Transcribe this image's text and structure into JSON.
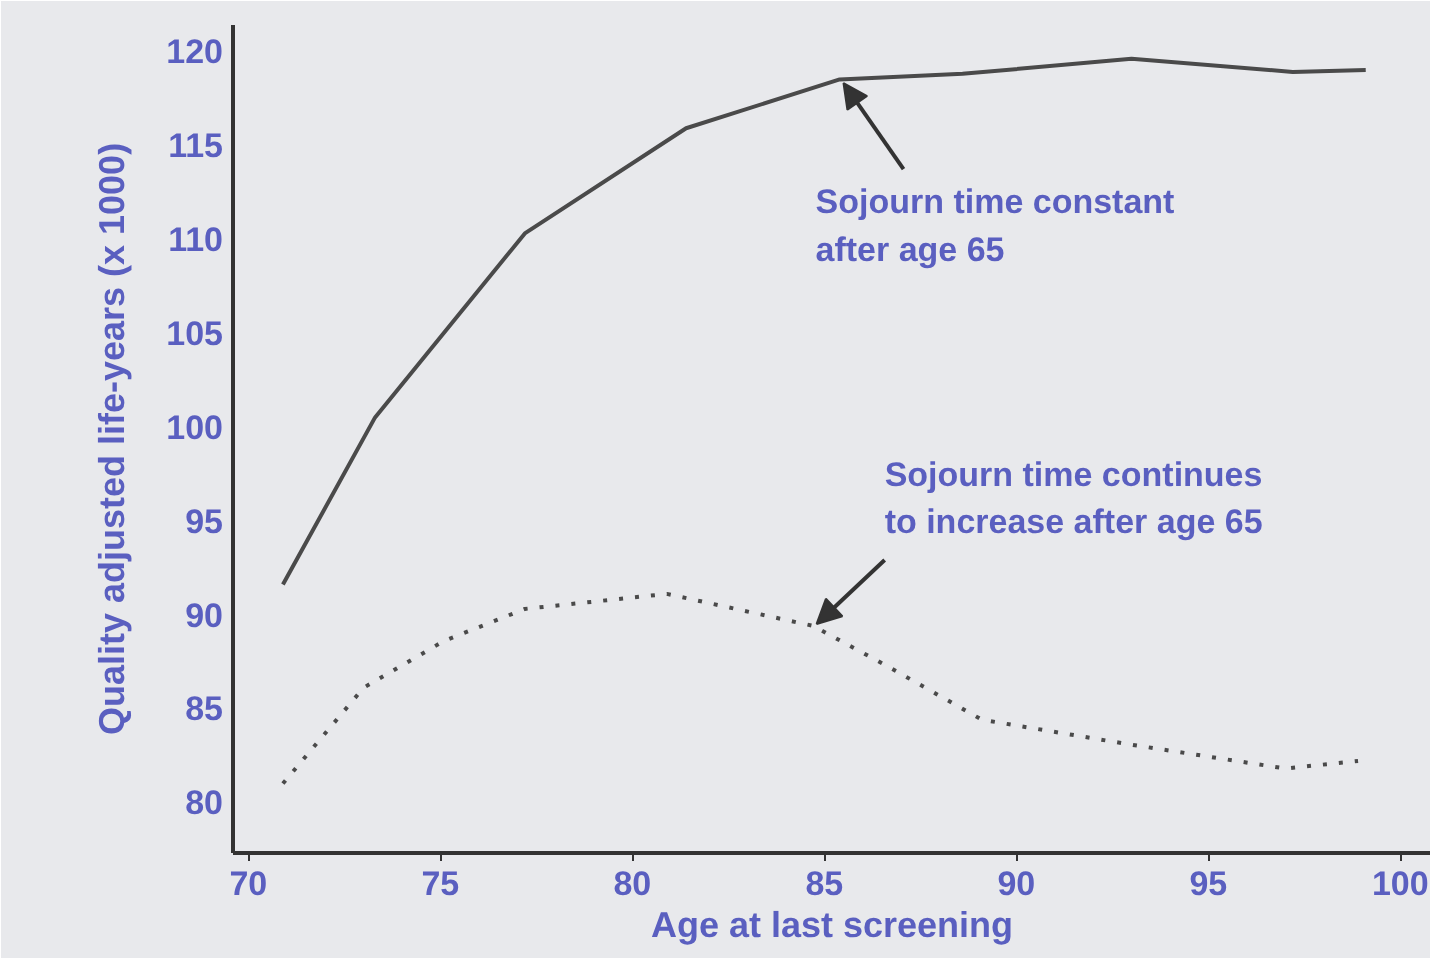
{
  "chart_data": {
    "type": "line",
    "xlabel": "Age at last screening",
    "ylabel": "Quality adjusted life-years (x 1000)",
    "xlim": [
      69.6,
      100.8
    ],
    "ylim": [
      77.3,
      121.4
    ],
    "xticks": [
      70,
      75,
      80,
      85,
      90,
      95,
      100
    ],
    "yticks": [
      80,
      85,
      90,
      95,
      100,
      105,
      110,
      115,
      120
    ],
    "grid": false,
    "marker": "none",
    "series": [
      {
        "color": "#4a4a4a",
        "line_style": "solid",
        "x": [
          70.9,
          73.3,
          77.2,
          81.4,
          85.4,
          88.6,
          93.0,
          97.2,
          99.1
        ],
        "values": [
          91.6,
          100.5,
          110.3,
          115.9,
          118.5,
          118.8,
          119.6,
          118.9,
          119.0
        ]
      },
      {
        "color": "#4a4a4a",
        "line_style": "dotted",
        "x": [
          70.9,
          73.0,
          75.1,
          77.2,
          80.9,
          84.7,
          86.6,
          89.1,
          92.9,
          97.0,
          98.9
        ],
        "values": [
          81.0,
          86.1,
          88.6,
          90.3,
          91.1,
          89.4,
          87.3,
          84.4,
          83.1,
          81.8,
          82.2
        ]
      }
    ],
    "annotations": [
      {
        "text": "Sojourn time constant\nafter age 65",
        "x": 85.5,
        "y": 118.3
      },
      {
        "text": "Sojourn time continues\nto increase after age 65",
        "x": 84.8,
        "y": 89.5
      }
    ]
  }
}
